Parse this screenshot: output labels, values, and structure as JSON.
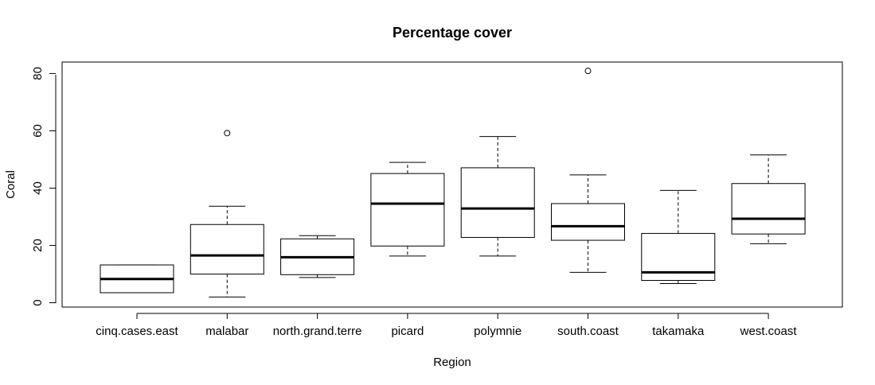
{
  "chart_data": {
    "type": "boxplot",
    "title": "Percentage cover",
    "xlabel": "Region",
    "ylabel": "Coral",
    "ylim": [
      -1.5,
      84
    ],
    "yticks": [
      0,
      20,
      40,
      60,
      80
    ],
    "ytick_labels": [
      "0",
      "20",
      "40",
      "60",
      "80"
    ],
    "grid": false,
    "legend": "none",
    "categories": [
      "cinq.cases.east",
      "malabar",
      "north.grand.terre",
      "picard",
      "polymnie",
      "south.coast",
      "takamaka",
      "west.coast"
    ],
    "boxes": [
      {
        "category": "cinq.cases.east",
        "whisker_low": 3.5,
        "q1": 3.5,
        "median": 8.3,
        "q3": 13.2,
        "whisker_high": 13.2,
        "outliers": []
      },
      {
        "category": "malabar",
        "whisker_low": 2.0,
        "q1": 10.0,
        "median": 16.5,
        "q3": 27.3,
        "whisker_high": 33.7,
        "outliers": [
          59.2
        ]
      },
      {
        "category": "north.grand.terre",
        "whisker_low": 8.8,
        "q1": 9.8,
        "median": 15.9,
        "q3": 22.3,
        "whisker_high": 23.4,
        "outliers": []
      },
      {
        "category": "picard",
        "whisker_low": 16.3,
        "q1": 19.8,
        "median": 34.6,
        "q3": 45.1,
        "whisker_high": 49.0,
        "outliers": []
      },
      {
        "category": "polymnie",
        "whisker_low": 16.3,
        "q1": 22.8,
        "median": 32.9,
        "q3": 47.1,
        "whisker_high": 58.0,
        "outliers": []
      },
      {
        "category": "south.coast",
        "whisker_low": 10.6,
        "q1": 21.8,
        "median": 26.7,
        "q3": 34.6,
        "whisker_high": 44.6,
        "outliers": [
          80.9
        ]
      },
      {
        "category": "takamaka",
        "whisker_low": 6.7,
        "q1": 7.8,
        "median": 10.6,
        "q3": 24.2,
        "whisker_high": 39.2,
        "outliers": []
      },
      {
        "category": "west.coast",
        "whisker_low": 20.6,
        "q1": 24.0,
        "median": 29.3,
        "q3": 41.6,
        "whisker_high": 51.6,
        "outliers": []
      }
    ]
  }
}
